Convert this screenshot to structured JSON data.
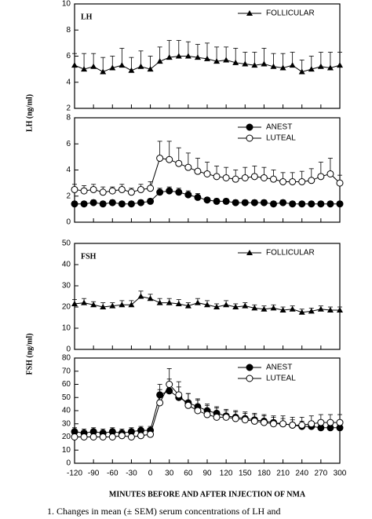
{
  "chart_data": [
    {
      "type": "line",
      "title": "LH",
      "ylabel": "LH (ng/ml)",
      "legend": "upper right",
      "x": [
        -120,
        -105,
        -90,
        -75,
        -60,
        -45,
        -30,
        -15,
        0,
        15,
        30,
        45,
        60,
        75,
        90,
        105,
        120,
        135,
        150,
        165,
        180,
        195,
        210,
        225,
        240,
        255,
        270,
        285,
        300
      ],
      "xlim": [
        -120,
        300
      ],
      "xticks": [
        -120,
        -90,
        -60,
        -30,
        0,
        30,
        60,
        90,
        120,
        150,
        180,
        210,
        240,
        270,
        300
      ],
      "ylim": [
        2,
        10
      ],
      "yticks": [
        2,
        4,
        6,
        8,
        10
      ],
      "series": [
        {
          "name": "FOLLICULAR",
          "color": "#000000",
          "marker": "triangle",
          "values": [
            5.3,
            5.0,
            5.2,
            4.8,
            5.1,
            5.3,
            4.9,
            5.2,
            5.0,
            5.6,
            5.9,
            6.0,
            6.0,
            5.9,
            5.8,
            5.6,
            5.7,
            5.5,
            5.4,
            5.3,
            5.4,
            5.2,
            5.1,
            5.3,
            4.8,
            5.0,
            5.2,
            5.1,
            5.3
          ],
          "errors": [
            0.9,
            1.2,
            1.0,
            1.1,
            0.9,
            1.3,
            1.0,
            1.2,
            1.0,
            1.1,
            1.3,
            1.2,
            1.1,
            1.0,
            1.2,
            1.1,
            1.0,
            1.1,
            0.9,
            1.0,
            1.2,
            1.0,
            1.1,
            1.0,
            0.9,
            1.0,
            1.1,
            1.2,
            1.0
          ]
        }
      ]
    },
    {
      "type": "line",
      "legend": "upper right",
      "x": [
        -120,
        -105,
        -90,
        -75,
        -60,
        -45,
        -30,
        -15,
        0,
        15,
        30,
        45,
        60,
        75,
        90,
        105,
        120,
        135,
        150,
        165,
        180,
        195,
        210,
        225,
        240,
        255,
        270,
        285,
        300
      ],
      "xlim": [
        -120,
        300
      ],
      "xticks": [
        -120,
        -90,
        -60,
        -30,
        0,
        30,
        60,
        90,
        120,
        150,
        180,
        210,
        240,
        270,
        300
      ],
      "ylim": [
        0,
        8
      ],
      "yticks": [
        0,
        2,
        4,
        6,
        8
      ],
      "series": [
        {
          "name": "ANEST",
          "color": "#000000",
          "marker": "circle",
          "values": [
            1.4,
            1.4,
            1.5,
            1.4,
            1.5,
            1.4,
            1.4,
            1.5,
            1.6,
            2.3,
            2.4,
            2.3,
            2.1,
            1.9,
            1.7,
            1.6,
            1.6,
            1.5,
            1.5,
            1.5,
            1.5,
            1.4,
            1.5,
            1.4,
            1.4,
            1.4,
            1.4,
            1.4,
            1.4
          ],
          "errors": [
            0.2,
            0.2,
            0.2,
            0.2,
            0.2,
            0.2,
            0.2,
            0.2,
            0.2,
            0.3,
            0.3,
            0.3,
            0.3,
            0.3,
            0.2,
            0.2,
            0.2,
            0.2,
            0.2,
            0.2,
            0.2,
            0.2,
            0.2,
            0.2,
            0.2,
            0.2,
            0.2,
            0.2,
            0.2
          ]
        },
        {
          "name": "LUTEAL",
          "color": "#000000",
          "marker": "open-circle",
          "values": [
            2.5,
            2.4,
            2.5,
            2.3,
            2.4,
            2.5,
            2.3,
            2.5,
            2.6,
            4.9,
            4.8,
            4.5,
            4.2,
            3.9,
            3.7,
            3.5,
            3.4,
            3.3,
            3.4,
            3.5,
            3.4,
            3.3,
            3.1,
            3.1,
            3.1,
            3.2,
            3.5,
            3.7,
            3.0
          ],
          "errors": [
            0.4,
            0.4,
            0.4,
            0.4,
            0.3,
            0.4,
            0.3,
            0.4,
            0.5,
            1.3,
            1.4,
            1.2,
            1.1,
            1.0,
            0.9,
            0.8,
            0.8,
            0.7,
            0.8,
            0.8,
            0.8,
            0.7,
            0.7,
            0.7,
            0.8,
            0.9,
            1.1,
            1.2,
            0.6
          ]
        }
      ]
    },
    {
      "type": "line",
      "title": "FSH",
      "ylabel": "FSH (ng/ml)",
      "legend": "upper right",
      "x": [
        -120,
        -105,
        -90,
        -75,
        -60,
        -45,
        -30,
        -15,
        0,
        15,
        30,
        45,
        60,
        75,
        90,
        105,
        120,
        135,
        150,
        165,
        180,
        195,
        210,
        225,
        240,
        255,
        270,
        285,
        300
      ],
      "xlim": [
        -120,
        300
      ],
      "xticks": [
        -120,
        -90,
        -60,
        -30,
        0,
        30,
        60,
        90,
        120,
        150,
        180,
        210,
        240,
        270,
        300
      ],
      "ylim": [
        0,
        50
      ],
      "yticks": [
        0,
        10,
        20,
        30,
        40,
        50
      ],
      "series": [
        {
          "name": "FOLLICULAR",
          "color": "#000000",
          "marker": "triangle",
          "values": [
            21.5,
            22,
            21,
            20,
            20.5,
            21,
            21,
            25,
            24,
            22,
            22,
            21.5,
            20.5,
            22,
            21,
            20,
            21,
            20,
            20.5,
            19.5,
            19,
            19.5,
            18.5,
            19,
            17.5,
            18,
            19,
            18.5,
            18.5
          ],
          "errors": [
            2,
            2,
            1.5,
            2,
            1.5,
            2,
            2,
            2.5,
            2,
            2,
            2,
            2,
            1.5,
            2,
            2,
            1.5,
            2,
            1.5,
            1.5,
            1.5,
            1.5,
            1.5,
            1.5,
            1.5,
            1.5,
            1.5,
            1.5,
            1.5,
            1.5
          ]
        }
      ]
    },
    {
      "type": "line",
      "xlabel": "MINUTES BEFORE AND AFTER INJECTION OF NMA",
      "legend": "upper right",
      "x": [
        -120,
        -105,
        -90,
        -75,
        -60,
        -45,
        -30,
        -15,
        0,
        15,
        30,
        45,
        60,
        75,
        90,
        105,
        120,
        135,
        150,
        165,
        180,
        195,
        210,
        225,
        240,
        255,
        270,
        285,
        300
      ],
      "xlim": [
        -120,
        300
      ],
      "xticks": [
        -120,
        -90,
        -60,
        -30,
        0,
        30,
        60,
        90,
        120,
        150,
        180,
        210,
        240,
        270,
        300
      ],
      "ylim": [
        0,
        80
      ],
      "yticks": [
        0,
        10,
        20,
        30,
        40,
        50,
        60,
        70,
        80
      ],
      "series": [
        {
          "name": "ANEST",
          "color": "#000000",
          "marker": "circle",
          "values": [
            24,
            23,
            24,
            23,
            24,
            23,
            24,
            25,
            25,
            52,
            55,
            50,
            46,
            43,
            40,
            38,
            36,
            35,
            34,
            33,
            32,
            31,
            30,
            29,
            28,
            28,
            27,
            27,
            27
          ],
          "errors": [
            3,
            3,
            3,
            3,
            3,
            3,
            3,
            3,
            3,
            8,
            9,
            8,
            7,
            6,
            5,
            5,
            4,
            4,
            4,
            4,
            4,
            4,
            4,
            4,
            4,
            4,
            4,
            4,
            4
          ]
        },
        {
          "name": "LUTEAL",
          "color": "#000000",
          "marker": "open-circle",
          "values": [
            20,
            20,
            20,
            20,
            20,
            21,
            20,
            21,
            22,
            46,
            60,
            52,
            44,
            40,
            37,
            35,
            35,
            34,
            33,
            32,
            31,
            30,
            30,
            29,
            29,
            30,
            31,
            31,
            31
          ],
          "errors": [
            3,
            3,
            3,
            3,
            3,
            3,
            3,
            3,
            3,
            10,
            12,
            10,
            9,
            8,
            7,
            7,
            6,
            6,
            6,
            6,
            6,
            6,
            6,
            6,
            6,
            6,
            6,
            6,
            6
          ]
        }
      ]
    }
  ],
  "caption": "1. Changes in mean (± SEM) serum concentrations of LH and"
}
